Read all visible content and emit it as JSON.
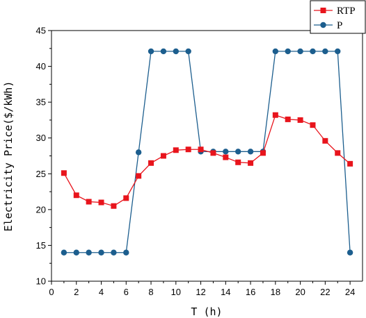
{
  "chart_data": {
    "type": "line",
    "title": "",
    "xlabel": "T  (h)",
    "ylabel": "Electricity Price($/kWh)",
    "xlim": [
      0,
      25
    ],
    "ylim": [
      10,
      45
    ],
    "xticks": [
      0,
      2,
      4,
      6,
      8,
      10,
      12,
      14,
      16,
      18,
      20,
      22,
      24
    ],
    "yticks": [
      10,
      15,
      20,
      25,
      30,
      35,
      40,
      45
    ],
    "grid": false,
    "legend": "top-right",
    "x": [
      1,
      2,
      3,
      4,
      5,
      6,
      7,
      8,
      9,
      10,
      11,
      12,
      13,
      14,
      15,
      16,
      17,
      18,
      19,
      20,
      21,
      22,
      23,
      24
    ],
    "series": [
      {
        "name": "RTP",
        "color": "#e8141c",
        "marker": "square",
        "values": [
          25.1,
          22.0,
          21.1,
          21.0,
          20.5,
          21.6,
          24.7,
          26.5,
          27.5,
          28.3,
          28.4,
          28.4,
          27.9,
          27.3,
          26.6,
          26.5,
          27.9,
          33.2,
          32.6,
          32.5,
          31.8,
          29.6,
          27.9,
          26.4
        ]
      },
      {
        "name": "P",
        "color": "#1c5e8e",
        "marker": "circle",
        "values": [
          14.0,
          14.0,
          14.0,
          14.0,
          14.0,
          14.0,
          28.0,
          42.1,
          42.1,
          42.1,
          42.1,
          28.1,
          28.1,
          28.1,
          28.1,
          28.1,
          28.1,
          42.1,
          42.1,
          42.1,
          42.1,
          42.1,
          42.1,
          14.0
        ]
      }
    ]
  }
}
